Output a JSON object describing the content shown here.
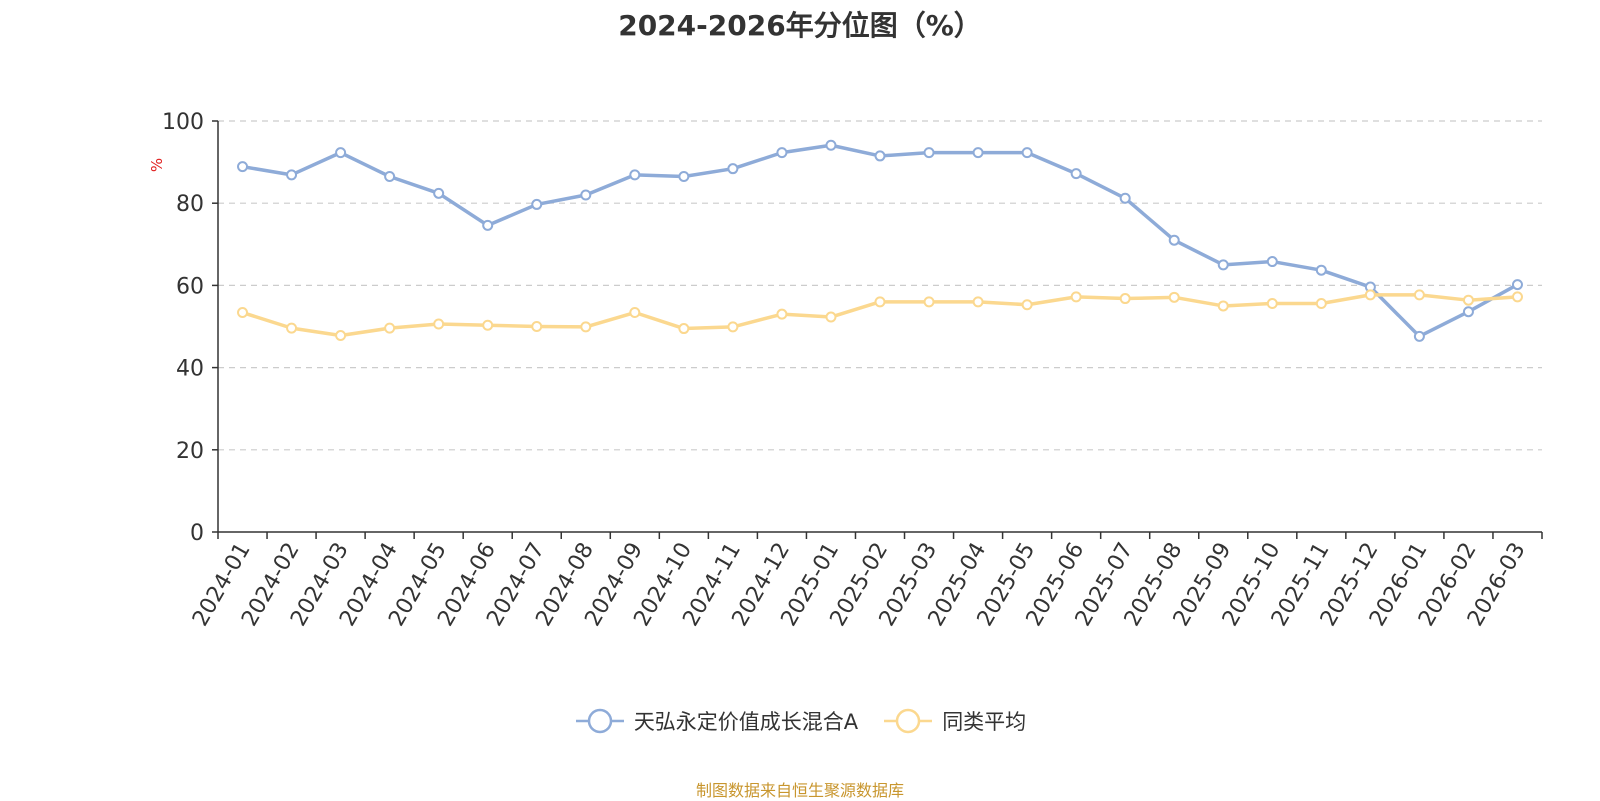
{
  "chart_data": {
    "type": "line",
    "title": "2024-2026年分位图（%）",
    "ylabel": "%",
    "xlabel": "",
    "ylim": [
      0,
      100
    ],
    "yticks": [
      0,
      20,
      40,
      60,
      80,
      100
    ],
    "grid": true,
    "legend_position": "bottom",
    "categories": [
      "2024-01",
      "2024-02",
      "2024-03",
      "2024-04",
      "2024-05",
      "2024-06",
      "2024-07",
      "2024-08",
      "2024-09",
      "2024-10",
      "2024-11",
      "2024-12",
      "2025-01",
      "2025-02",
      "2025-03",
      "2025-04",
      "2025-05",
      "2025-06",
      "2025-07",
      "2025-08",
      "2025-09",
      "2025-10",
      "2025-11",
      "2025-12",
      "2026-01",
      "2026-02",
      "2026-03"
    ],
    "series": [
      {
        "name": "天弘永定价值成长混合A",
        "color": "#8eabd8",
        "values": [
          88.9,
          86.9,
          92.3,
          86.5,
          82.4,
          74.6,
          79.7,
          82.0,
          86.9,
          86.5,
          88.4,
          92.3,
          94.1,
          91.5,
          92.3,
          92.3,
          92.3,
          87.2,
          81.2,
          71.0,
          65.0,
          65.8,
          63.7,
          59.6,
          47.6,
          53.6,
          60.2
        ]
      },
      {
        "name": "同类平均",
        "color": "#fbd88f",
        "values": [
          53.4,
          49.6,
          47.8,
          49.6,
          50.6,
          50.3,
          50.0,
          49.9,
          53.4,
          49.5,
          49.9,
          53.0,
          52.3,
          56.0,
          56.0,
          56.0,
          55.3,
          57.2,
          56.8,
          57.1,
          55.0,
          55.6,
          55.6,
          57.7,
          57.7,
          56.4,
          57.2
        ]
      }
    ]
  },
  "footer": {
    "source_text": "制图数据来自恒生聚源数据库",
    "source_color": "#c8962e"
  }
}
